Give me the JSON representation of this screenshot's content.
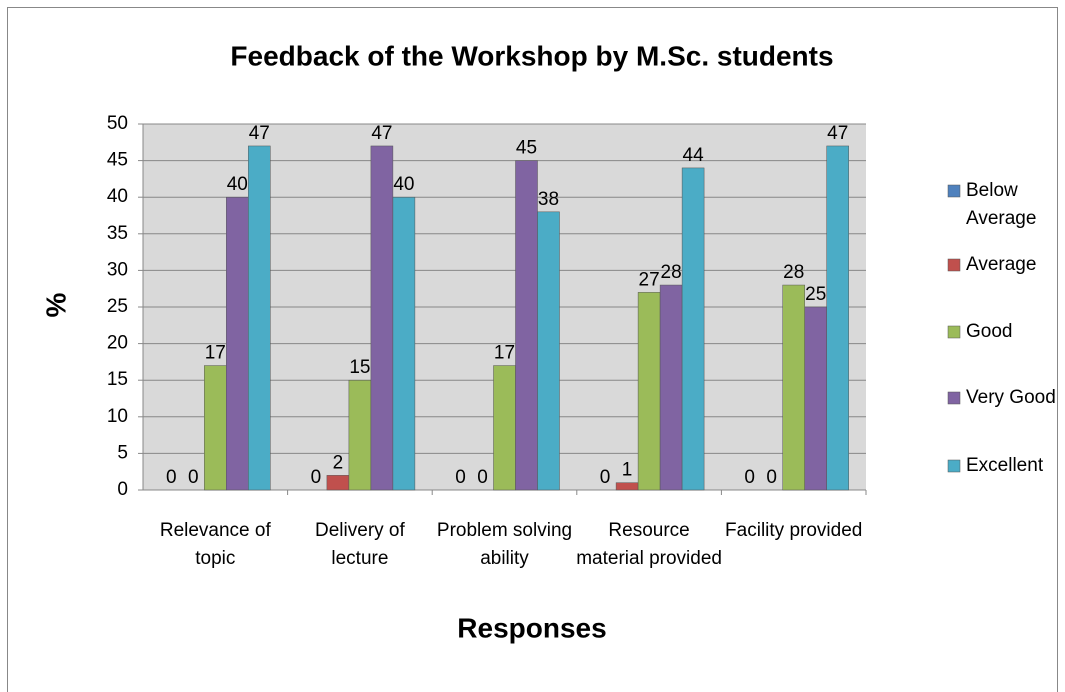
{
  "chart_data": {
    "type": "bar",
    "title": "Feedback of the Workshop by M.Sc. students",
    "x_label": "Responses",
    "y_label": "%",
    "categories": [
      "Relevance of topic",
      "Delivery of lecture",
      "Problem solving ability",
      "Resource material provided",
      "Facility provided"
    ],
    "series": [
      {
        "name": "Below Average",
        "color": "#4f81bd",
        "values": [
          0,
          0,
          0,
          0,
          0
        ]
      },
      {
        "name": "Average",
        "color": "#c0504d",
        "values": [
          0,
          2,
          0,
          1,
          0
        ]
      },
      {
        "name": "Good",
        "color": "#9bbb59",
        "values": [
          17,
          15,
          17,
          27,
          28
        ]
      },
      {
        "name": "Very Good",
        "color": "#8064a2",
        "values": [
          40,
          47,
          45,
          28,
          25
        ]
      },
      {
        "name": "Excellent",
        "color": "#4bacc6",
        "values": [
          47,
          40,
          38,
          44,
          47
        ]
      }
    ],
    "ylim": [
      0,
      50
    ],
    "yticks": [
      0,
      5,
      10,
      15,
      20,
      25,
      30,
      35,
      40,
      45,
      50
    ],
    "grid": true,
    "legend": "right"
  }
}
